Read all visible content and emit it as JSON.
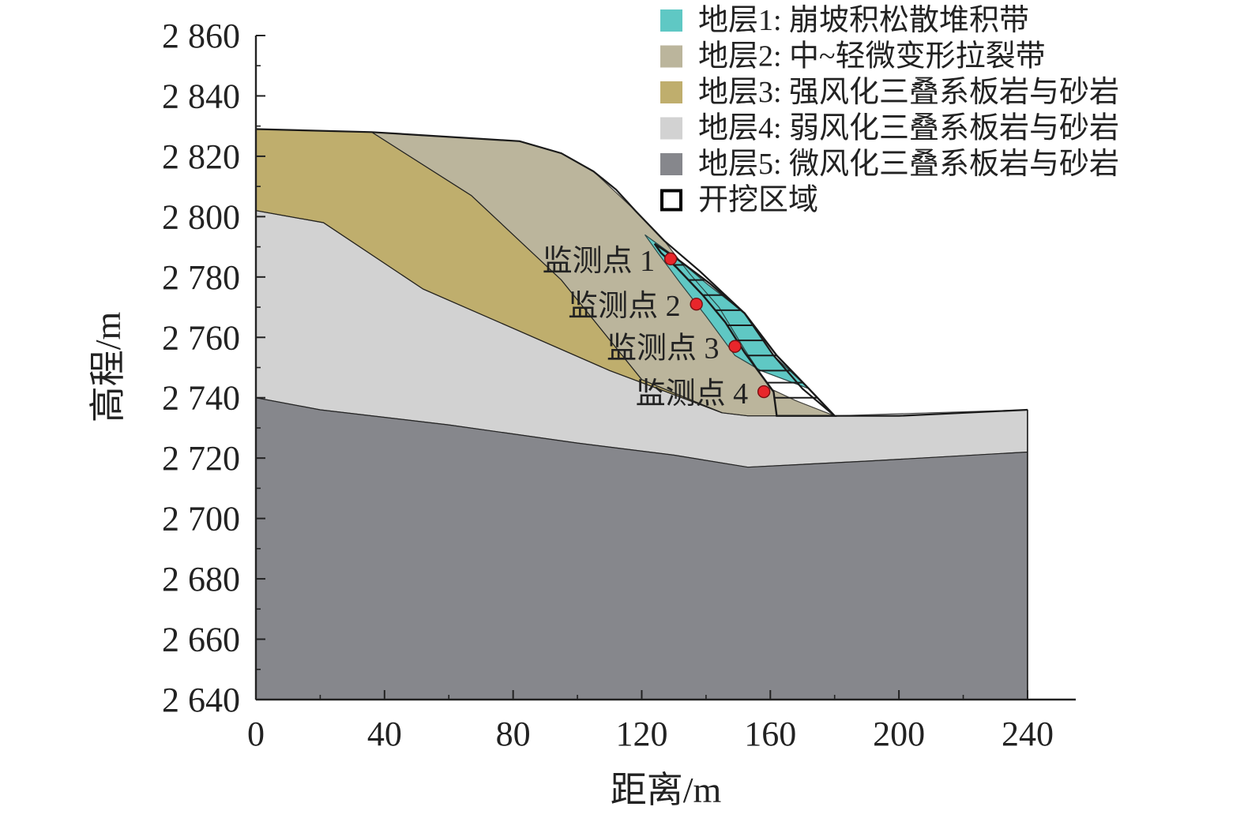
{
  "chart_data": {
    "type": "area",
    "xlabel": "距离/m",
    "ylabel": "高程/m",
    "xlim": [
      0,
      255
    ],
    "ylim": [
      2640,
      2860
    ],
    "xticks": [
      0,
      40,
      80,
      120,
      160,
      200,
      240
    ],
    "xtick_labels": [
      "0",
      "40",
      "80",
      "120",
      "160",
      "200",
      "240"
    ],
    "yticks": [
      2640,
      2660,
      2680,
      2700,
      2720,
      2740,
      2760,
      2780,
      2800,
      2820,
      2840,
      2860
    ],
    "ytick_labels": [
      "2 640",
      "2 660",
      "2 680",
      "2 700",
      "2 720",
      "2 740",
      "2 760",
      "2 780",
      "2 800",
      "2 820",
      "2 840",
      "2 860"
    ],
    "legend_position": "top-right",
    "legend": [
      {
        "label": "地层1: 崩坡积松散堆积带",
        "color": "#5fc8c4",
        "kind": "fill"
      },
      {
        "label": "地层2: 中~轻微变形拉裂带",
        "color": "#bbb59c",
        "kind": "fill"
      },
      {
        "label": "地层3: 强风化三叠系板岩与砂岩",
        "color": "#bfae6d",
        "kind": "fill"
      },
      {
        "label": "地层4: 弱风化三叠系板岩与砂岩",
        "color": "#d2d2d2",
        "kind": "fill"
      },
      {
        "label": "地层5: 微风化三叠系板岩与砂岩",
        "color": "#86878c",
        "kind": "fill"
      },
      {
        "label": "开挖区域",
        "color": "#000000",
        "kind": "outline"
      }
    ],
    "layers": [
      {
        "id": "layer5",
        "color": "#86878c",
        "points": [
          [
            0,
            2740
          ],
          [
            20,
            2736
          ],
          [
            60,
            2731
          ],
          [
            100,
            2725
          ],
          [
            130,
            2721
          ],
          [
            153,
            2717
          ],
          [
            190,
            2719
          ],
          [
            240,
            2722
          ],
          [
            240,
            2640
          ],
          [
            0,
            2640
          ]
        ]
      },
      {
        "id": "layer4",
        "color": "#d2d2d2",
        "points": [
          [
            0,
            2802
          ],
          [
            21,
            2798
          ],
          [
            52,
            2776
          ],
          [
            80,
            2763
          ],
          [
            110,
            2749
          ],
          [
            145,
            2735
          ],
          [
            153,
            2734
          ],
          [
            160,
            2734
          ],
          [
            180,
            2734
          ],
          [
            210,
            2735
          ],
          [
            240,
            2736
          ],
          [
            240,
            2722
          ],
          [
            190,
            2719
          ],
          [
            153,
            2717
          ],
          [
            130,
            2721
          ],
          [
            100,
            2725
          ],
          [
            60,
            2731
          ],
          [
            20,
            2736
          ],
          [
            0,
            2740
          ]
        ]
      },
      {
        "id": "layer3",
        "color": "#bfae6d",
        "points": [
          [
            0,
            2829
          ],
          [
            36,
            2828
          ],
          [
            67,
            2807
          ],
          [
            95,
            2779
          ],
          [
            120,
            2746
          ],
          [
            145,
            2735
          ],
          [
            110,
            2749
          ],
          [
            80,
            2763
          ],
          [
            52,
            2776
          ],
          [
            21,
            2798
          ],
          [
            0,
            2802
          ]
        ]
      },
      {
        "id": "layer2",
        "color": "#bbb59c",
        "points": [
          [
            36,
            2828
          ],
          [
            50,
            2827
          ],
          [
            82,
            2825
          ],
          [
            95,
            2821
          ],
          [
            105,
            2815
          ],
          [
            118,
            2802
          ],
          [
            127,
            2792
          ],
          [
            135,
            2781
          ],
          [
            144,
            2770
          ],
          [
            152,
            2756
          ],
          [
            160,
            2743
          ],
          [
            168,
            2739
          ],
          [
            180,
            2734
          ],
          [
            153,
            2734
          ],
          [
            145,
            2735
          ],
          [
            120,
            2746
          ],
          [
            95,
            2779
          ],
          [
            67,
            2807
          ]
        ]
      },
      {
        "id": "layer1",
        "color": "#5fc8c4",
        "points": [
          [
            121,
            2794
          ],
          [
            130,
            2787
          ],
          [
            140,
            2778
          ],
          [
            152,
            2768
          ],
          [
            161,
            2754
          ],
          [
            172,
            2743
          ],
          [
            157,
            2749
          ],
          [
            149,
            2754
          ],
          [
            140,
            2767
          ],
          [
            132,
            2778
          ],
          [
            125,
            2788
          ]
        ]
      }
    ],
    "ground_surface": [
      [
        0,
        2829
      ],
      [
        36,
        2828
      ],
      [
        82,
        2825
      ],
      [
        95,
        2821
      ],
      [
        105,
        2815
      ],
      [
        112,
        2809
      ],
      [
        118,
        2802
      ],
      [
        127,
        2792
      ],
      [
        138,
        2782
      ],
      [
        152,
        2768
      ],
      [
        161,
        2754
      ],
      [
        170,
        2743
      ],
      [
        180,
        2734
      ],
      [
        200,
        2734
      ],
      [
        240,
        2736
      ]
    ],
    "excavation_region": {
      "points": [
        [
          124,
          2791
        ],
        [
          131,
          2786
        ],
        [
          141,
          2778
        ],
        [
          152,
          2768
        ],
        [
          162,
          2754
        ],
        [
          172,
          2743
        ],
        [
          180,
          2734
        ],
        [
          162,
          2734
        ],
        [
          161,
          2742
        ],
        [
          152,
          2755
        ],
        [
          146,
          2765
        ],
        [
          139,
          2774
        ],
        [
          131,
          2783
        ],
        [
          126,
          2788
        ]
      ],
      "hatch_y": [
        2784,
        2779,
        2774,
        2769,
        2764,
        2759,
        2754,
        2749,
        2745,
        2740
      ]
    },
    "monitoring_points": [
      {
        "label": "监测点 1",
        "x": 129,
        "y": 2786
      },
      {
        "label": "监测点 2",
        "x": 137,
        "y": 2771
      },
      {
        "label": "监测点 3",
        "x": 149,
        "y": 2757
      },
      {
        "label": "监测点 4",
        "x": 158,
        "y": 2742
      }
    ],
    "marker_color": "#e8262b",
    "outline_color": "#1a1a1a"
  }
}
